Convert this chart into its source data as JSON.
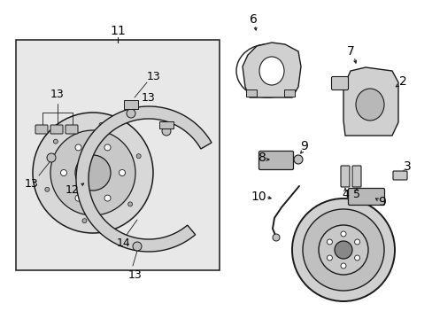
{
  "bg_color": "#ffffff",
  "box_fill": "#e8e8e8",
  "lc": "#1a1a1a",
  "figsize": [
    4.89,
    3.6
  ],
  "dpi": 100,
  "xlim": [
    0,
    489
  ],
  "ylim": [
    0,
    360
  ]
}
